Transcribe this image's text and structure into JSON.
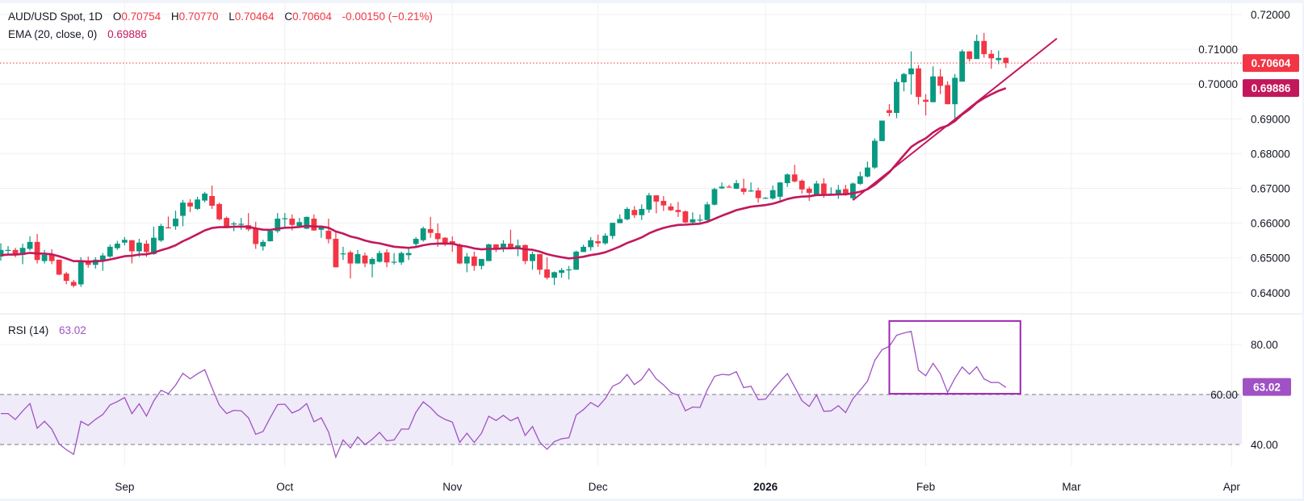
{
  "legend": {
    "symbol": "AUD/USD Spot, 1D",
    "o_label": "O",
    "o_value": "0.70754",
    "h_label": "H",
    "h_value": "0.70770",
    "l_label": "L",
    "l_value": "0.70464",
    "c_label": "C",
    "c_value": "0.70604",
    "change": "-0.00150 (−0.21%)",
    "ema_label": "EMA (20, close, 0)",
    "ema_value": "0.69886",
    "rsi_label": "RSI (14)",
    "rsi_value": "63.02"
  },
  "colors": {
    "up": "#089981",
    "down": "#F23645",
    "ema": "#C2185B",
    "trendline": "#C2185B",
    "rsi": "#A052C5",
    "rsi_band": "#EFEBF8",
    "annotation_box": "#9C27B0",
    "grid": "#F0F0F3",
    "text": "#131722"
  },
  "chart_data": {
    "type": "candlestick",
    "title": "AUD/USD Spot, 1D",
    "price_axis": {
      "range": [
        0.6363,
        0.7242
      ],
      "ticks": [
        "0.72000",
        "0.71000",
        "0.70000",
        "0.69000",
        "0.68000",
        "0.67000",
        "0.66000",
        "0.65000",
        "0.64000"
      ],
      "last_price_label": "0.70604",
      "ema_label": "0.69886"
    },
    "time_axis": {
      "ticks": [
        {
          "label": "Sep",
          "bar_index": 17,
          "bold": false
        },
        {
          "label": "Oct",
          "bar_index": 39,
          "bold": false
        },
        {
          "label": "Nov",
          "bar_index": 62,
          "bold": false
        },
        {
          "label": "Dec",
          "bar_index": 82,
          "bold": false
        },
        {
          "label": "2026",
          "bar_index": 105,
          "bold": true
        },
        {
          "label": "Feb",
          "bar_index": 127,
          "bold": false
        },
        {
          "label": "Mar",
          "bar_index": 147,
          "bold": false
        },
        {
          "label": "Apr",
          "bar_index": 169,
          "bold": false
        }
      ]
    },
    "ohlc_fields": [
      "open",
      "high",
      "low",
      "close"
    ],
    "ohlc": [
      [
        0.6504,
        0.6542,
        0.6492,
        0.6523
      ],
      [
        0.6523,
        0.6534,
        0.6511,
        0.6523
      ],
      [
        0.6523,
        0.6529,
        0.6502,
        0.6511
      ],
      [
        0.6509,
        0.6541,
        0.6482,
        0.6529
      ],
      [
        0.6526,
        0.6562,
        0.6521,
        0.6546
      ],
      [
        0.6546,
        0.6569,
        0.6484,
        0.6494
      ],
      [
        0.6491,
        0.6523,
        0.6484,
        0.6509
      ],
      [
        0.6511,
        0.6525,
        0.6482,
        0.6491
      ],
      [
        0.6495,
        0.6495,
        0.645,
        0.6452
      ],
      [
        0.6455,
        0.646,
        0.6424,
        0.6434
      ],
      [
        0.6431,
        0.6437,
        0.6415,
        0.642
      ],
      [
        0.6424,
        0.6502,
        0.6417,
        0.6491
      ],
      [
        0.6492,
        0.6504,
        0.6472,
        0.648
      ],
      [
        0.648,
        0.6502,
        0.6469,
        0.6495
      ],
      [
        0.6492,
        0.6514,
        0.6463,
        0.6507
      ],
      [
        0.6504,
        0.6538,
        0.6501,
        0.6532
      ],
      [
        0.6528,
        0.6549,
        0.6523,
        0.6541
      ],
      [
        0.6544,
        0.656,
        0.6536,
        0.6552
      ],
      [
        0.6551,
        0.6551,
        0.6484,
        0.6519
      ],
      [
        0.6519,
        0.6555,
        0.6503,
        0.6544
      ],
      [
        0.6541,
        0.6551,
        0.6503,
        0.6517
      ],
      [
        0.6511,
        0.659,
        0.6509,
        0.6558
      ],
      [
        0.655,
        0.6598,
        0.6546,
        0.6592
      ],
      [
        0.6588,
        0.6619,
        0.6585,
        0.6585
      ],
      [
        0.6591,
        0.6636,
        0.6581,
        0.6613
      ],
      [
        0.6621,
        0.6667,
        0.6591,
        0.6659
      ],
      [
        0.6659,
        0.6669,
        0.6632,
        0.6648
      ],
      [
        0.6641,
        0.6676,
        0.6638,
        0.6668
      ],
      [
        0.6665,
        0.669,
        0.666,
        0.6685
      ],
      [
        0.6678,
        0.6708,
        0.6641,
        0.665
      ],
      [
        0.6655,
        0.6659,
        0.6608,
        0.6611
      ],
      [
        0.6615,
        0.6619,
        0.6586,
        0.659
      ],
      [
        0.6598,
        0.6604,
        0.6577,
        0.6599
      ],
      [
        0.6598,
        0.6615,
        0.6581,
        0.6598
      ],
      [
        0.6594,
        0.6629,
        0.6577,
        0.6582
      ],
      [
        0.6585,
        0.6604,
        0.6526,
        0.654
      ],
      [
        0.6533,
        0.6552,
        0.6521,
        0.6546
      ],
      [
        0.6548,
        0.6581,
        0.6547,
        0.6578
      ],
      [
        0.6577,
        0.6629,
        0.6572,
        0.6613
      ],
      [
        0.6613,
        0.6629,
        0.6588,
        0.6614
      ],
      [
        0.6613,
        0.6625,
        0.6579,
        0.6595
      ],
      [
        0.6592,
        0.6615,
        0.6591,
        0.6603
      ],
      [
        0.6584,
        0.6619,
        0.6583,
        0.6618
      ],
      [
        0.6613,
        0.6625,
        0.6578,
        0.6579
      ],
      [
        0.6581,
        0.6592,
        0.6558,
        0.6588
      ],
      [
        0.6578,
        0.6613,
        0.6542,
        0.6554
      ],
      [
        0.6555,
        0.6575,
        0.6473,
        0.6473
      ],
      [
        0.6512,
        0.6532,
        0.6494,
        0.6513
      ],
      [
        0.6516,
        0.6521,
        0.6441,
        0.6484
      ],
      [
        0.6484,
        0.6523,
        0.6484,
        0.6511
      ],
      [
        0.6507,
        0.6515,
        0.6473,
        0.6484
      ],
      [
        0.6482,
        0.6502,
        0.6444,
        0.6497
      ],
      [
        0.6489,
        0.6521,
        0.6487,
        0.6514
      ],
      [
        0.6516,
        0.6525,
        0.6473,
        0.6487
      ],
      [
        0.6488,
        0.6514,
        0.6481,
        0.6489
      ],
      [
        0.6487,
        0.6518,
        0.648,
        0.6514
      ],
      [
        0.6508,
        0.6531,
        0.6494,
        0.6514
      ],
      [
        0.654,
        0.656,
        0.6531,
        0.6555
      ],
      [
        0.6551,
        0.659,
        0.6547,
        0.6585
      ],
      [
        0.6583,
        0.6618,
        0.6558,
        0.6572
      ],
      [
        0.6571,
        0.6599,
        0.6532,
        0.6554
      ],
      [
        0.6558,
        0.656,
        0.6534,
        0.6544
      ],
      [
        0.6548,
        0.6562,
        0.6518,
        0.6538
      ],
      [
        0.6538,
        0.6542,
        0.6482,
        0.6484
      ],
      [
        0.6484,
        0.6514,
        0.6459,
        0.6504
      ],
      [
        0.6504,
        0.6518,
        0.6463,
        0.6477
      ],
      [
        0.6477,
        0.6497,
        0.6467,
        0.6497
      ],
      [
        0.6491,
        0.6541,
        0.6491,
        0.6539
      ],
      [
        0.6539,
        0.6539,
        0.6517,
        0.6528
      ],
      [
        0.6528,
        0.6551,
        0.6517,
        0.6541
      ],
      [
        0.6541,
        0.6581,
        0.6526,
        0.6528
      ],
      [
        0.6528,
        0.6553,
        0.6505,
        0.6536
      ],
      [
        0.6537,
        0.6539,
        0.6482,
        0.6491
      ],
      [
        0.6491,
        0.6518,
        0.6466,
        0.6511
      ],
      [
        0.6511,
        0.6511,
        0.6452,
        0.6466
      ],
      [
        0.6467,
        0.6502,
        0.6438,
        0.6443
      ],
      [
        0.6443,
        0.6461,
        0.6422,
        0.6459
      ],
      [
        0.6457,
        0.6471,
        0.6443,
        0.6465
      ],
      [
        0.6467,
        0.6477,
        0.6438,
        0.6467
      ],
      [
        0.6466,
        0.6521,
        0.6466,
        0.6518
      ],
      [
        0.6517,
        0.6538,
        0.6517,
        0.6532
      ],
      [
        0.6531,
        0.656,
        0.6521,
        0.6551
      ],
      [
        0.6548,
        0.6567,
        0.6532,
        0.6542
      ],
      [
        0.6542,
        0.6571,
        0.6538,
        0.6564
      ],
      [
        0.6563,
        0.6601,
        0.6554,
        0.6601
      ],
      [
        0.66,
        0.6625,
        0.66,
        0.6612
      ],
      [
        0.6611,
        0.6646,
        0.6608,
        0.6641
      ],
      [
        0.6638,
        0.6649,
        0.6615,
        0.6623
      ],
      [
        0.6623,
        0.6654,
        0.6609,
        0.6641
      ],
      [
        0.6639,
        0.6687,
        0.663,
        0.668
      ],
      [
        0.668,
        0.668,
        0.6628,
        0.6662
      ],
      [
        0.6664,
        0.6678,
        0.6635,
        0.6651
      ],
      [
        0.6648,
        0.6657,
        0.6635,
        0.6637
      ],
      [
        0.6638,
        0.6661,
        0.6618,
        0.6632
      ],
      [
        0.6634,
        0.6636,
        0.66,
        0.6602
      ],
      [
        0.6602,
        0.6631,
        0.6594,
        0.6611
      ],
      [
        0.6609,
        0.6625,
        0.6601,
        0.661
      ],
      [
        0.6609,
        0.6661,
        0.6606,
        0.6654
      ],
      [
        0.6653,
        0.6702,
        0.6651,
        0.6698
      ],
      [
        0.67,
        0.6717,
        0.6698,
        0.6705
      ],
      [
        0.6705,
        0.671,
        0.6702,
        0.6704
      ],
      [
        0.6699,
        0.6724,
        0.6698,
        0.6715
      ],
      [
        0.67,
        0.6728,
        0.6682,
        0.669
      ],
      [
        0.6693,
        0.6717,
        0.669,
        0.6694
      ],
      [
        0.6694,
        0.6702,
        0.6659,
        0.6672
      ],
      [
        0.6672,
        0.6675,
        0.667,
        0.6673
      ],
      [
        0.6671,
        0.6708,
        0.6668,
        0.6695
      ],
      [
        0.6676,
        0.6718,
        0.6663,
        0.6717
      ],
      [
        0.6715,
        0.6743,
        0.6704,
        0.674
      ],
      [
        0.674,
        0.6768,
        0.6717,
        0.672
      ],
      [
        0.6722,
        0.6726,
        0.6685,
        0.6697
      ],
      [
        0.6699,
        0.6705,
        0.6664,
        0.6687
      ],
      [
        0.6681,
        0.6722,
        0.6679,
        0.6714
      ],
      [
        0.6714,
        0.6729,
        0.6673,
        0.6684
      ],
      [
        0.6684,
        0.6703,
        0.6679,
        0.6685
      ],
      [
        0.6683,
        0.671,
        0.667,
        0.6696
      ],
      [
        0.6698,
        0.671,
        0.6679,
        0.6684
      ],
      [
        0.6672,
        0.6717,
        0.6666,
        0.6714
      ],
      [
        0.6713,
        0.6748,
        0.671,
        0.6735
      ],
      [
        0.6734,
        0.6777,
        0.6731,
        0.676
      ],
      [
        0.676,
        0.6844,
        0.6756,
        0.6837
      ],
      [
        0.6836,
        0.6895,
        0.6836,
        0.6895
      ],
      [
        0.6925,
        0.6942,
        0.6907,
        0.6917
      ],
      [
        0.6917,
        0.7015,
        0.6902,
        0.7006
      ],
      [
        0.7005,
        0.7032,
        0.6979,
        0.7029
      ],
      [
        0.7028,
        0.7094,
        0.697,
        0.7045
      ],
      [
        0.7045,
        0.7055,
        0.6941,
        0.6963
      ],
      [
        0.6955,
        0.6971,
        0.691,
        0.6949
      ],
      [
        0.6948,
        0.7051,
        0.6947,
        0.7022
      ],
      [
        0.7022,
        0.7043,
        0.6971,
        0.6995
      ],
      [
        0.6997,
        0.7008,
        0.6942,
        0.6942
      ],
      [
        0.6942,
        0.7029,
        0.6898,
        0.7018
      ],
      [
        0.7007,
        0.7099,
        0.7007,
        0.7094
      ],
      [
        0.7094,
        0.7095,
        0.7065,
        0.7072
      ],
      [
        0.7072,
        0.7142,
        0.7072,
        0.7124
      ],
      [
        0.7124,
        0.7147,
        0.7076,
        0.7086
      ],
      [
        0.7087,
        0.7098,
        0.7044,
        0.7074
      ],
      [
        0.7069,
        0.7096,
        0.7057,
        0.7075
      ],
      [
        0.70754,
        0.7077,
        0.70464,
        0.70604
      ]
    ],
    "ema": {
      "period": 20,
      "source": "close",
      "seed": 0.6508,
      "last": 0.69886
    },
    "trendline": {
      "from": {
        "bar_index": 117,
        "price": 0.6666
      },
      "to": {
        "bar_index": 145,
        "price": 0.7131
      }
    },
    "rsi": {
      "period": 14,
      "last": 63.02,
      "seed_avg_gain": 0.0011,
      "seed_avg_loss": 0.001,
      "range": [
        27.5,
        101
      ],
      "ticks": [
        "80.00",
        "60.00",
        "40.00"
      ],
      "band": [
        40,
        60
      ],
      "annotation_box": {
        "bar_from": 122,
        "bar_to": 139,
        "rsi_from": 60.3,
        "rsi_to": 89.4
      }
    }
  }
}
